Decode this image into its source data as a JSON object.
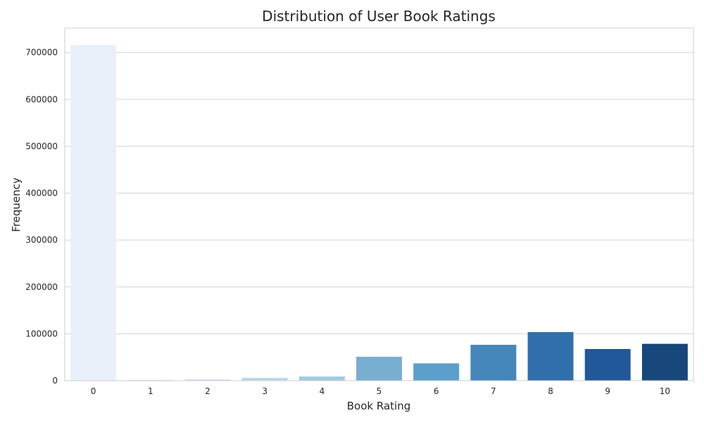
{
  "chart_data": {
    "type": "bar",
    "title": "Distribution of User Book Ratings",
    "xlabel": "Book Rating",
    "ylabel": "Frequency",
    "categories": [
      "0",
      "1",
      "2",
      "3",
      "4",
      "5",
      "6",
      "7",
      "8",
      "9",
      "10"
    ],
    "values": [
      716109,
      1770,
      2759,
      5996,
      8904,
      50974,
      36924,
      76457,
      103736,
      67541,
      78610
    ],
    "ylim": [
      0,
      752000
    ],
    "yticks": [
      0,
      100000,
      200000,
      300000,
      400000,
      500000,
      600000,
      700000
    ],
    "ytick_labels": [
      "0",
      "100000",
      "200000",
      "300000",
      "400000",
      "500000",
      "600000",
      "700000"
    ],
    "grid": true,
    "colors": [
      "#e9f0fa",
      "#dde9f6",
      "#cfe1f2",
      "#bcd7eb",
      "#a2cbe2",
      "#78aecf",
      "#5c9fcd",
      "#4587bb",
      "#306fac",
      "#21589a",
      "#17477b"
    ],
    "grid_color": "#d3d3d3",
    "frame_color": "#cccccc"
  }
}
